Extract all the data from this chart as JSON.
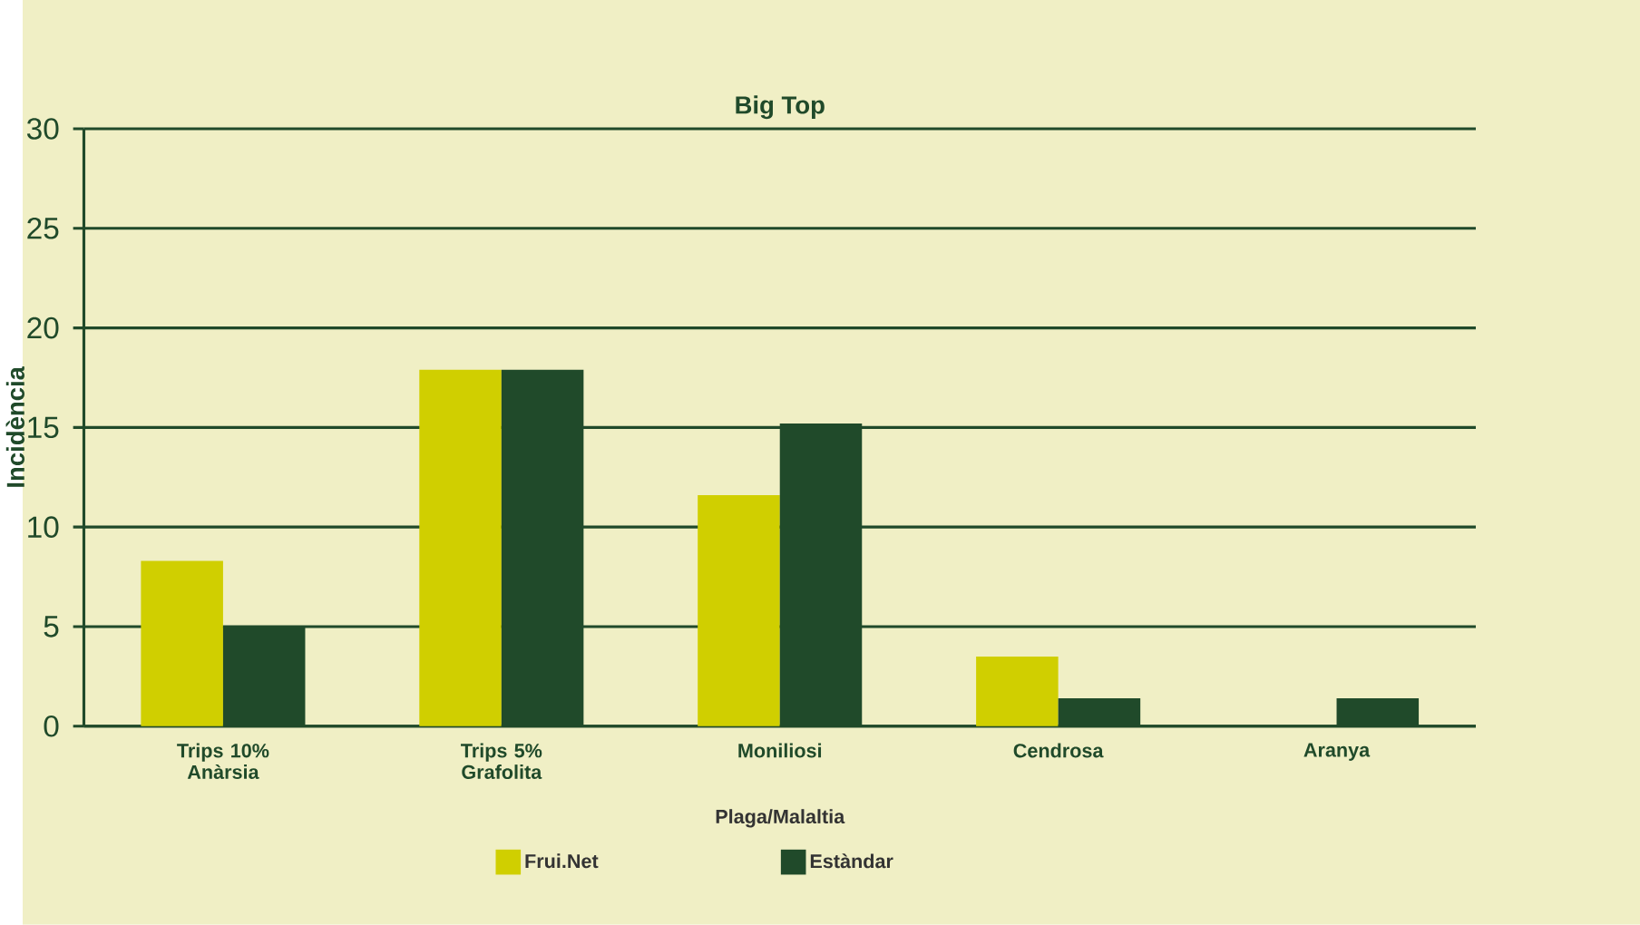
{
  "chart_data": {
    "type": "bar",
    "title": "Big Top",
    "xlabel": "Plaga/Malaltia",
    "ylabel": "Incidència",
    "categories": [
      "Trips 10% Anàrsia",
      "Trips 5% Grafolita",
      "Moniliosi",
      "Cendrosa",
      "Aranya"
    ],
    "series": [
      {
        "name": "Frui.Net",
        "color": "#d0cf00",
        "values": [
          8.3,
          17.9,
          11.6,
          3.5,
          0
        ]
      },
      {
        "name": "Estàndar",
        "color": "#204a2a",
        "values": [
          5.0,
          17.9,
          15.2,
          1.4,
          1.4
        ]
      }
    ],
    "ylim": [
      0,
      30
    ],
    "yticks": [
      0,
      5,
      10,
      15,
      20,
      25,
      30
    ],
    "grid": "y",
    "legend": "bottom"
  }
}
